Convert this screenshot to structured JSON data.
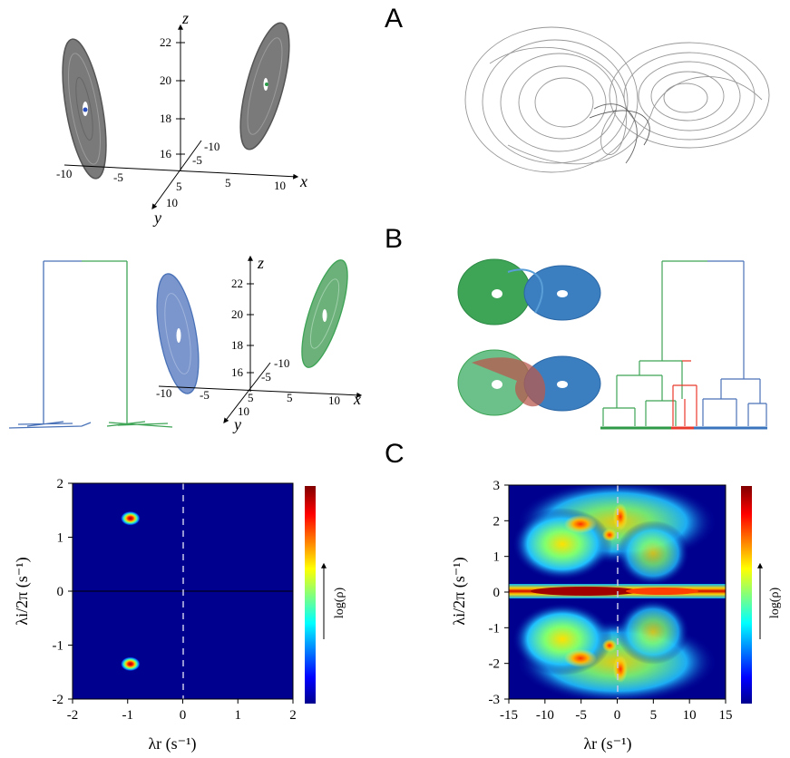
{
  "panels": {
    "a": "A",
    "b": "B",
    "c": "C"
  },
  "panelA": {
    "axis3d": {
      "x_name": "x",
      "y_name": "y",
      "z_name": "z",
      "x_ticks": [
        "-10",
        "-5",
        "5",
        "10"
      ],
      "y_ticks": [
        "-10",
        "-5",
        "5",
        "10"
      ],
      "z_ticks": [
        "16",
        "18",
        "20",
        "22"
      ]
    }
  },
  "panelB": {
    "axis3d": {
      "x_name": "x",
      "y_name": "y",
      "z_name": "z",
      "x_ticks": [
        "-10",
        "-5",
        "5",
        "10"
      ],
      "y_ticks": [
        "-10",
        "-5",
        "5",
        "10"
      ],
      "z_ticks": [
        "16",
        "18",
        "20",
        "22"
      ]
    },
    "colors": {
      "blue": "#4a72b8",
      "green": "#3ea456",
      "red": "#e83a2c",
      "cluster_blue": "#7b96cc",
      "cluster_green": "#6cb07a"
    }
  },
  "chart_data": [
    {
      "type": "heatmap",
      "xlabel": "λr (s⁻¹)",
      "ylabel": "λi/2π (s⁻¹)",
      "x_ticks": [
        "-2",
        "-1",
        "0",
        "1",
        "2"
      ],
      "y_ticks": [
        "2",
        "1",
        "0",
        "-1",
        "-2"
      ],
      "xlim": [
        -2,
        2
      ],
      "ylim": [
        -2,
        2
      ],
      "colorbar_label": "log(ρ)",
      "peaks": [
        {
          "x": -0.95,
          "y": 1.35
        },
        {
          "x": -0.95,
          "y": -1.35
        }
      ],
      "dashed_vertical_at": 0,
      "solid_horizontal_at": 0
    },
    {
      "type": "heatmap",
      "xlabel": "λr (s⁻¹)",
      "ylabel": "λi/2π (s⁻¹)",
      "x_ticks": [
        "-15",
        "-10",
        "-5",
        "0",
        "5",
        "10",
        "15"
      ],
      "y_ticks": [
        "3",
        "2",
        "1",
        "0",
        "-1",
        "-2",
        "-3"
      ],
      "xlim": [
        -15,
        15
      ],
      "ylim": [
        -3,
        3
      ],
      "colorbar_label": "log(ρ)",
      "dashed_vertical_at": 0
    }
  ],
  "colors": {
    "heat_bg": "#00008f",
    "axis_gray": "#666666"
  }
}
